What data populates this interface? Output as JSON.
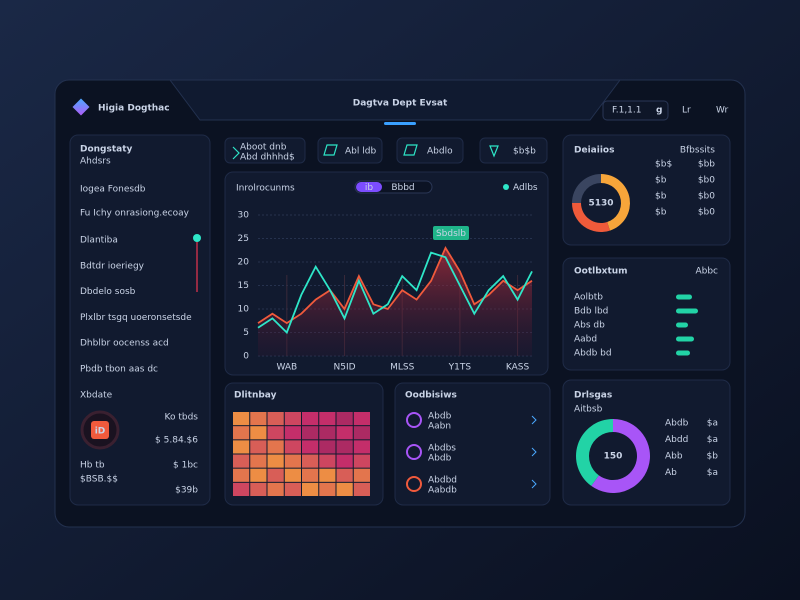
{
  "header": {
    "brand": "Higia Dogthac",
    "title": "Dagtva Dept Evsat",
    "status": "F.1,1.1",
    "user": "g",
    "links": [
      "Lr",
      "Wr"
    ]
  },
  "kpis": [
    {
      "label": "Aboot dnb",
      "sub": "Abd dhhhd$"
    },
    {
      "label": "Abl ldb"
    },
    {
      "label": "Abdlo"
    },
    {
      "label": "$b$b"
    }
  ],
  "sidebar": {
    "title": "Dongstaty",
    "subtitle": "Ahdsrs",
    "highlight": "Iogea Fonesdb",
    "caption": "Fu Ichy onrasiong.ecoay",
    "items": [
      "Dlantiba",
      "Bdtdr ioeriegy",
      "Dbdelo sosb",
      "Plxlbr tsgq uoeronsetsde",
      "Dhblbr oocenss acd",
      "Pbdb tbon aas dc"
    ],
    "wallet": {
      "label": "Xbdate",
      "badge": "iD",
      "lines": [
        "Ko tbds",
        "$ 5.84.$6"
      ],
      "rows": [
        [
          "Hb tb",
          "$ 1bc"
        ],
        [
          "$BSB.$$",
          "$39b"
        ]
      ]
    }
  },
  "breakdown": {
    "title": "Ootlbxtum",
    "tag": "Abbc",
    "rows": [
      {
        "label": "Aolbtb",
        "value": 40
      },
      {
        "label": "Bdb lbd",
        "value": 55
      },
      {
        "label": "Abs db",
        "value": 30
      },
      {
        "label": "Aabd",
        "value": 45
      },
      {
        "label": "Abdb bd",
        "value": 35
      }
    ]
  },
  "tasks": {
    "title": "Oodbisiws",
    "items": [
      {
        "name": "Abdb",
        "sub": "Aabn"
      },
      {
        "name": "Abdbs",
        "sub": "Abdb"
      },
      {
        "name": "Abdbd",
        "sub": "Aabdb"
      }
    ]
  },
  "chart_data": [
    {
      "type": "line",
      "title": "Inrolrocunms",
      "toggle": [
        "ib",
        "Bbbd"
      ],
      "annotation": "Sbdslb",
      "categories": [
        null,
        null,
        "WAB",
        null,
        null,
        null,
        "N5ID",
        null,
        null,
        null,
        "MLSS",
        null,
        null,
        null,
        "Y1TS",
        null,
        null,
        null,
        "KASS",
        null
      ],
      "ylim": [
        0,
        30
      ],
      "yticks": [
        0,
        5,
        10,
        15,
        20,
        25,
        30
      ],
      "grid": true,
      "series": [
        {
          "name": "Adlbs",
          "color": "#2ee6c8",
          "values": [
            6,
            8,
            5,
            13,
            19,
            14,
            8,
            16,
            9,
            11,
            17,
            14,
            22,
            21,
            15,
            9,
            14,
            17,
            12,
            18
          ]
        },
        {
          "color": "#f05a3c",
          "values": [
            7,
            9,
            7,
            9,
            12,
            14,
            10,
            17,
            11,
            10,
            14,
            12,
            16,
            23,
            18,
            11,
            13,
            16,
            14,
            16
          ]
        }
      ]
    },
    {
      "type": "heatmap",
      "title": "Dlitnbay",
      "zlim": [
        0,
        10
      ],
      "colors": [
        "#4a1845",
        "#c42e6a",
        "#f7a53a"
      ],
      "values": [
        [
          9,
          8,
          7,
          6,
          5,
          5,
          4,
          5
        ],
        [
          8,
          9,
          6,
          5,
          4,
          4,
          5,
          4
        ],
        [
          9,
          7,
          8,
          6,
          5,
          4,
          4,
          5
        ],
        [
          7,
          8,
          9,
          8,
          7,
          6,
          5,
          6
        ],
        [
          8,
          9,
          7,
          9,
          8,
          9,
          7,
          8
        ],
        [
          6,
          7,
          8,
          7,
          9,
          8,
          9,
          7
        ]
      ]
    },
    {
      "type": "pie",
      "title": "Deiaiios",
      "tag": "Bfbssits",
      "center": "5130",
      "values": [
        45,
        30,
        25
      ],
      "colors": [
        "#f7a53a",
        "#ef5a3a",
        "#3a4560"
      ],
      "legend_rows": [
        [
          "$b$",
          "$bb"
        ],
        [
          "$b",
          "$b0"
        ],
        [
          "$b",
          "$b0"
        ],
        [
          "$b",
          "$b0"
        ]
      ]
    },
    {
      "type": "pie",
      "title": "Drlsgas",
      "subtitle": "Aitbsb",
      "center": "150",
      "values": [
        60,
        40
      ],
      "colors": [
        "#a855f7",
        "#22d3a6"
      ],
      "legend_rows": [
        [
          "Abdb",
          "$a"
        ],
        [
          "Abdd",
          "$a"
        ],
        [
          "Abb",
          "$b"
        ],
        [
          "Ab",
          "$a"
        ]
      ]
    }
  ]
}
